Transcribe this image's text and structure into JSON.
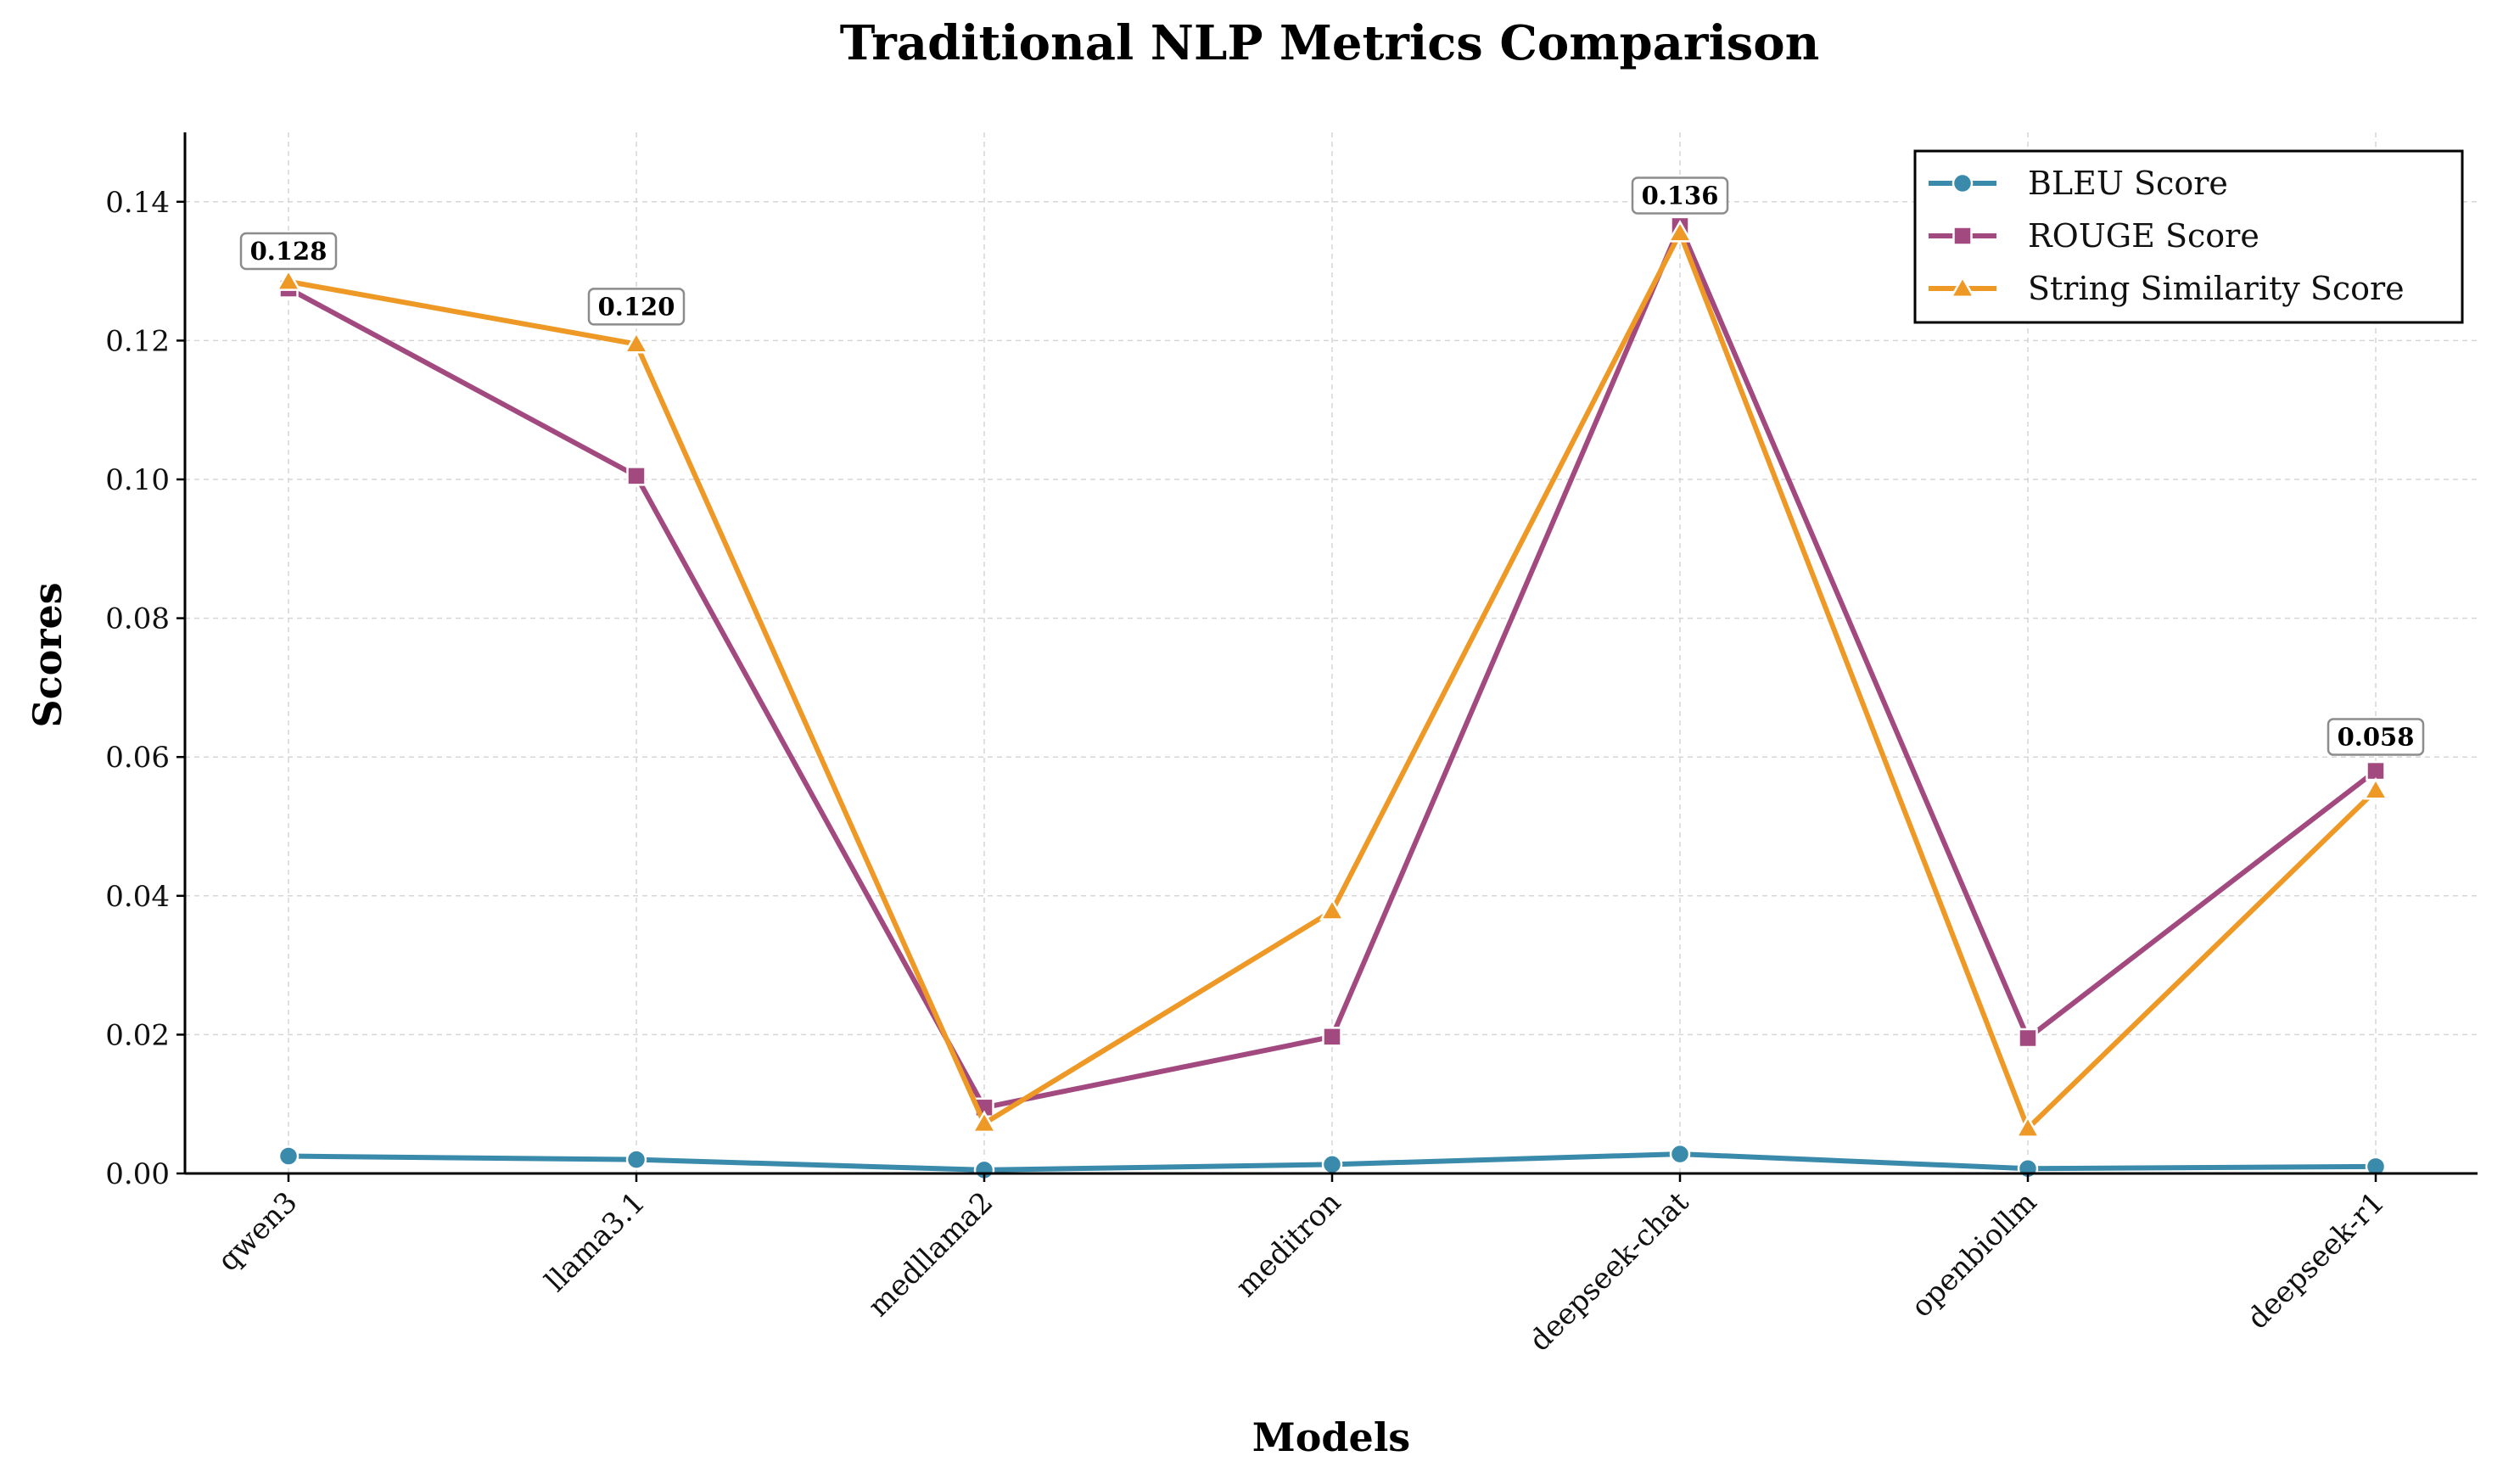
{
  "chart_data": {
    "type": "line",
    "title": "Traditional NLP Metrics Comparison",
    "xlabel": "Models",
    "ylabel": "Scores",
    "categories": [
      "qwen3",
      "llama3.1",
      "medllama2",
      "meditron",
      "deepseek-chat",
      "openbiollm",
      "deepseek-r1"
    ],
    "ylim": [
      0,
      0.15
    ],
    "yticks": [
      "0.00",
      "0.02",
      "0.04",
      "0.06",
      "0.08",
      "0.10",
      "0.12",
      "0.14"
    ],
    "grid": true,
    "legend_position": "top-right",
    "series": [
      {
        "name": "BLEU Score",
        "color": "#3a8aab",
        "marker": "circle",
        "values": [
          0.0025,
          0.002,
          0.0005,
          0.0013,
          0.0028,
          0.0007,
          0.001
        ]
      },
      {
        "name": "ROUGE Score",
        "color": "#a2497f",
        "marker": "square",
        "values": [
          0.1275,
          0.1005,
          0.0095,
          0.0197,
          0.1365,
          0.0195,
          0.058
        ]
      },
      {
        "name": "String Similarity Score",
        "color": "#ee9825",
        "marker": "triangle",
        "values": [
          0.1285,
          0.1195,
          0.0072,
          0.0378,
          0.1355,
          0.0065,
          0.0552
        ]
      }
    ],
    "annotations": [
      {
        "category": "qwen3",
        "value": 0.128,
        "text": "0.128"
      },
      {
        "category": "llama3.1",
        "value": 0.12,
        "text": "0.120"
      },
      {
        "category": "deepseek-chat",
        "value": 0.136,
        "text": "0.136"
      },
      {
        "category": "deepseek-r1",
        "value": 0.058,
        "text": "0.058"
      }
    ]
  }
}
